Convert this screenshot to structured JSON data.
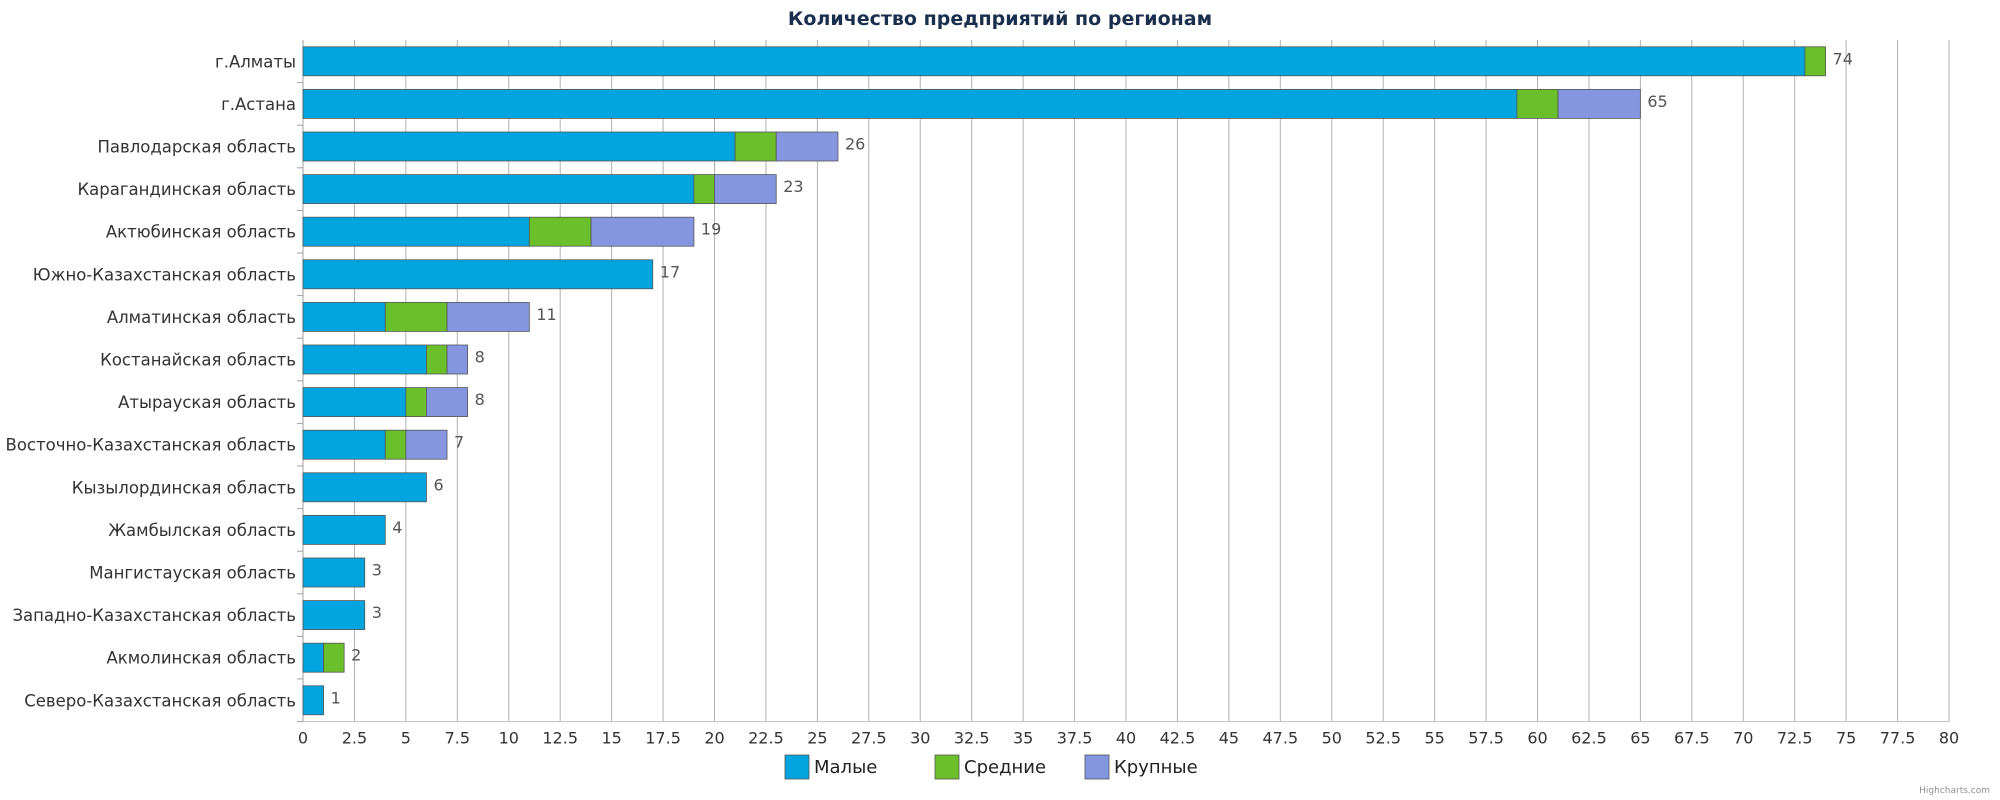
{
  "chart_data": {
    "type": "bar",
    "orientation": "horizontal",
    "stacked": true,
    "title": "Количество предприятий по регионам",
    "categories": [
      "г.Алматы",
      "г.Астана",
      "Павлодарская область",
      "Карагандинская область",
      "Актюбинская область",
      "Южно-Казахстанская область",
      "Алматинская область",
      "Костанайская область",
      "Атырауская область",
      "Восточно-Казахстанская область",
      "Кызылординская область",
      "Жамбылская область",
      "Мангистауская область",
      "Западно-Казахстанская область",
      "Акмолинская область",
      "Северо-Казахстанская область"
    ],
    "series": [
      {
        "name": "Малые",
        "color": "#00a5e0",
        "values": [
          73,
          59,
          21,
          19,
          11,
          17,
          4,
          6,
          5,
          4,
          6,
          4,
          3,
          3,
          1,
          1
        ]
      },
      {
        "name": "Средние",
        "color": "#6abf2b",
        "values": [
          1,
          2,
          2,
          1,
          3,
          0,
          3,
          1,
          1,
          1,
          0,
          0,
          0,
          0,
          1,
          0
        ]
      },
      {
        "name": "Крупные",
        "color": "#8596e0",
        "values": [
          0,
          4,
          3,
          3,
          5,
          0,
          4,
          1,
          2,
          2,
          0,
          0,
          0,
          0,
          0,
          0
        ]
      }
    ],
    "totals": [
      "74",
      "65",
      "26",
      "23",
      "19",
      "17",
      "11",
      "8",
      "8",
      "7",
      "6",
      "4",
      "3",
      "3",
      "2",
      "1"
    ],
    "xlim": [
      0,
      80
    ],
    "xticks": [
      "0",
      "2.5",
      "5",
      "7.5",
      "10",
      "12.5",
      "15",
      "17.5",
      "20",
      "22.5",
      "25",
      "27.5",
      "30",
      "32.5",
      "35",
      "37.5",
      "40",
      "42.5",
      "45",
      "47.5",
      "50",
      "52.5",
      "55",
      "57.5",
      "60",
      "62.5",
      "65",
      "67.5",
      "70",
      "72.5",
      "75",
      "77.5",
      "80"
    ],
    "grid": true,
    "legend_position": "bottom-center",
    "credits": "Highcharts.com"
  }
}
